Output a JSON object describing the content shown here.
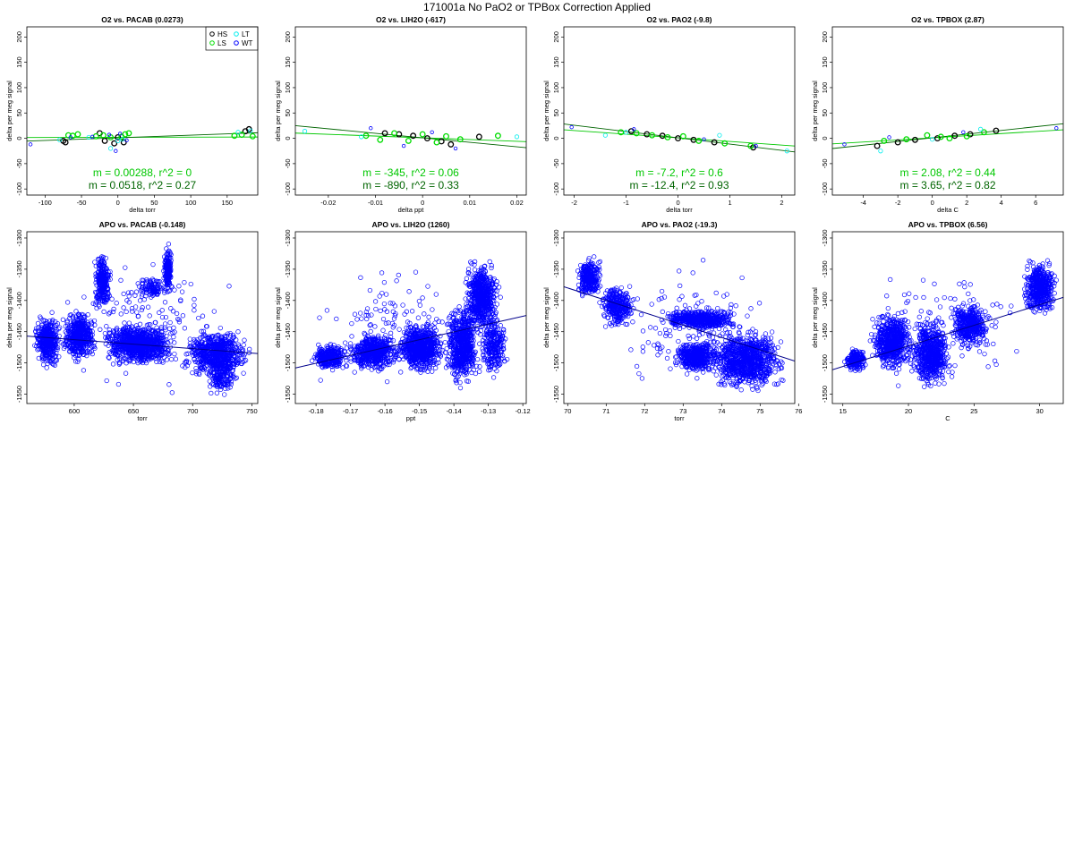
{
  "page_title": "171001a   No PaO2 or TPBox Correction Applied",
  "colors": {
    "HS": "#000000",
    "LS": "#00dd00",
    "LT": "#00eeee",
    "WT": "#0000ff",
    "fit_green": "#00c800",
    "fit_dark": "#006400"
  },
  "legend": {
    "entries": [
      "HS",
      "LS",
      "LT",
      "WT"
    ]
  },
  "chart_data": [
    {
      "type": "scatter",
      "title": "O2 vs. PACAB (0.0273)",
      "xlabel": "delta torr",
      "ylabel": "delta per meg signal",
      "xlim": [
        -125,
        192
      ],
      "ylim": [
        -112,
        220
      ],
      "xticks": [
        -100,
        -50,
        0,
        50,
        100,
        150
      ],
      "yticks": [
        -100,
        -50,
        0,
        50,
        100,
        150,
        200
      ],
      "legend_position": "top-right",
      "fit_lines": [
        {
          "color": "green",
          "slope": 0.00288,
          "intercept": 2
        },
        {
          "color": "darkgreen",
          "slope": 0.0518,
          "intercept": 1
        }
      ],
      "annotations": [
        {
          "text": "m = 0.00288, r^2 = 0",
          "color": "green"
        },
        {
          "text": "m = 0.0518, r^2 = 0.27",
          "color": "darkgreen"
        }
      ],
      "series": [
        {
          "name": "HS",
          "x": [
            -75,
            -72,
            -25,
            -18,
            -5,
            0,
            8,
            180,
            175
          ],
          "y": [
            -5,
            -8,
            10,
            -5,
            -10,
            2,
            -8,
            18,
            14
          ]
        },
        {
          "name": "LS",
          "x": [
            -68,
            -62,
            -55,
            -30,
            -20,
            -10,
            5,
            10,
            15,
            160,
            170,
            185
          ],
          "y": [
            6,
            5,
            8,
            4,
            6,
            2,
            3,
            8,
            10,
            5,
            7,
            4
          ]
        },
        {
          "name": "LT",
          "x": [
            -80,
            -40,
            -10,
            0,
            6,
            165,
            182
          ],
          "y": [
            -3,
            2,
            -20,
            -5,
            -2,
            12,
            15
          ]
        },
        {
          "name": "WT",
          "x": [
            -120,
            -65,
            -35,
            -12,
            -3,
            3,
            12
          ],
          "y": [
            -12,
            2,
            3,
            7,
            -25,
            9,
            -4
          ]
        }
      ]
    },
    {
      "type": "scatter",
      "title": "O2 vs. LIH2O (-617)",
      "xlabel": "delta ppt",
      "ylabel": "delta per meg signal",
      "xlim": [
        -0.027,
        0.022
      ],
      "ylim": [
        -112,
        220
      ],
      "xticks": [
        -0.02,
        -0.01,
        0.0,
        0.01,
        0.02
      ],
      "yticks": [
        -100,
        -50,
        0,
        50,
        100,
        150,
        200
      ],
      "fit_lines": [
        {
          "color": "green",
          "slope": -345,
          "intercept": 1
        },
        {
          "color": "darkgreen",
          "slope": -890,
          "intercept": 1
        }
      ],
      "annotations": [
        {
          "text": "m = -345, r^2 = 0.06",
          "color": "green"
        },
        {
          "text": "m = -890, r^2 = 0.33",
          "color": "darkgreen"
        }
      ],
      "series": [
        {
          "name": "HS",
          "x": [
            -0.008,
            -0.005,
            -0.002,
            0.001,
            0.004,
            0.006,
            0.012
          ],
          "y": [
            10,
            8,
            5,
            0,
            -6,
            -12,
            3
          ]
        },
        {
          "name": "LS",
          "x": [
            -0.012,
            -0.009,
            -0.006,
            -0.003,
            0.0,
            0.003,
            0.005,
            0.008,
            0.016
          ],
          "y": [
            5,
            -3,
            10,
            -5,
            8,
            -8,
            4,
            -2,
            5
          ]
        },
        {
          "name": "LT",
          "x": [
            -0.025,
            -0.013,
            0.02
          ],
          "y": [
            14,
            3,
            3
          ]
        },
        {
          "name": "WT",
          "x": [
            -0.011,
            -0.004,
            0.002,
            0.007
          ],
          "y": [
            20,
            -15,
            12,
            -20
          ]
        }
      ]
    },
    {
      "type": "scatter",
      "title": "O2 vs. PAO2 (-9.8)",
      "xlabel": "delta torr",
      "ylabel": "delta per meg signal",
      "xlim": [
        -2.2,
        2.25
      ],
      "ylim": [
        -112,
        220
      ],
      "xticks": [
        -2,
        -1,
        0,
        1,
        2
      ],
      "yticks": [
        -100,
        -50,
        0,
        50,
        100,
        150,
        200
      ],
      "fit_lines": [
        {
          "color": "green",
          "slope": -7.2,
          "intercept": 1
        },
        {
          "color": "darkgreen",
          "slope": -12.4,
          "intercept": 1
        }
      ],
      "annotations": [
        {
          "text": "m = -7.2, r^2 = 0.6",
          "color": "green"
        },
        {
          "text": "m = -12.4, r^2 = 0.93",
          "color": "darkgreen"
        }
      ],
      "series": [
        {
          "name": "HS",
          "x": [
            -0.9,
            -0.6,
            -0.3,
            0.0,
            0.3,
            0.7,
            1.45
          ],
          "y": [
            14,
            8,
            5,
            0,
            -3,
            -8,
            -18
          ]
        },
        {
          "name": "LS",
          "x": [
            -1.1,
            -0.8,
            -0.5,
            -0.2,
            0.1,
            0.4,
            0.9,
            1.4
          ],
          "y": [
            12,
            10,
            6,
            2,
            4,
            -5,
            -10,
            -15
          ]
        },
        {
          "name": "LT",
          "x": [
            -1.4,
            -1.0,
            0.8,
            2.1
          ],
          "y": [
            6,
            12,
            6,
            -25
          ]
        },
        {
          "name": "WT",
          "x": [
            -2.05,
            -0.85,
            0.5,
            1.5
          ],
          "y": [
            22,
            18,
            -2,
            -15
          ]
        }
      ]
    },
    {
      "type": "scatter",
      "title": "O2 vs. TPBOX (2.87)",
      "xlabel": "delta C",
      "ylabel": "delta per meg signal",
      "xlim": [
        -5.8,
        7.6
      ],
      "ylim": [
        -112,
        220
      ],
      "xticks": [
        -4,
        -2,
        0,
        2,
        4,
        6
      ],
      "yticks": [
        -100,
        -50,
        0,
        50,
        100,
        150,
        200
      ],
      "fit_lines": [
        {
          "color": "green",
          "slope": 2.08,
          "intercept": 1
        },
        {
          "color": "darkgreen",
          "slope": 3.65,
          "intercept": 1
        }
      ],
      "annotations": [
        {
          "text": "m = 2.08, r^2 = 0.44",
          "color": "green"
        },
        {
          "text": "m = 3.65, r^2 = 0.82",
          "color": "darkgreen"
        }
      ],
      "series": [
        {
          "name": "HS",
          "x": [
            -3.2,
            -2.0,
            -1.0,
            0.3,
            1.3,
            2.2,
            3.7
          ],
          "y": [
            -15,
            -8,
            -3,
            0,
            5,
            8,
            15
          ]
        },
        {
          "name": "LS",
          "x": [
            -2.8,
            -1.5,
            -0.3,
            0.5,
            1.0,
            2.0,
            3.0
          ],
          "y": [
            -5,
            -2,
            6,
            3,
            0,
            4,
            12
          ]
        },
        {
          "name": "LT",
          "x": [
            -3.0,
            0.0,
            2.8
          ],
          "y": [
            -25,
            -2,
            18
          ]
        },
        {
          "name": "WT",
          "x": [
            -5.1,
            -2.5,
            1.8,
            7.2
          ],
          "y": [
            -12,
            2,
            12,
            20
          ]
        }
      ]
    },
    {
      "type": "scatter",
      "title": "APO vs. PACAB (-0.148)",
      "xlabel": "torr",
      "ylabel": "delta per meg signal",
      "xlim": [
        560,
        755
      ],
      "ylim": [
        -1565,
        -1290
      ],
      "xticks": [
        600,
        650,
        700,
        750
      ],
      "yticks": [
        -1550,
        -1500,
        -1450,
        -1400,
        -1350,
        -1300
      ],
      "fit_line": {
        "x": [
          560,
          755
        ],
        "y": [
          -1457,
          -1485
        ]
      },
      "clusters": [
        {
          "x": [
            565,
            590
          ],
          "y": [
            -1420,
            -1510
          ],
          "count": 380
        },
        {
          "x": [
            588,
            620
          ],
          "y": [
            -1410,
            -1505
          ],
          "count": 450
        },
        {
          "x": [
            616,
            632
          ],
          "y": [
            -1320,
            -1420
          ],
          "count": 260
        },
        {
          "x": [
            620,
            690
          ],
          "y": [
            -1430,
            -1510
          ],
          "count": 850
        },
        {
          "x": [
            675,
            683
          ],
          "y": [
            -1305,
            -1395
          ],
          "count": 150
        },
        {
          "x": [
            650,
            680
          ],
          "y": [
            -1360,
            -1400
          ],
          "count": 100
        },
        {
          "x": [
            690,
            752
          ],
          "y": [
            -1440,
            -1530
          ],
          "count": 650
        },
        {
          "x": [
            710,
            740
          ],
          "y": [
            -1480,
            -1560
          ],
          "count": 150
        },
        {
          "x": [
            565,
            752
          ],
          "y": [
            -1320,
            -1560
          ],
          "count": 150
        }
      ]
    },
    {
      "type": "scatter",
      "title": "APO vs. LIH2O (1260)",
      "xlabel": "ppt",
      "ylabel": "delta per meg signal",
      "xlim": [
        -0.186,
        -0.119
      ],
      "ylim": [
        -1565,
        -1290
      ],
      "xticks": [
        -0.18,
        -0.17,
        -0.16,
        -0.15,
        -0.14,
        -0.13,
        -0.12
      ],
      "yticks": [
        -1550,
        -1500,
        -1450,
        -1400,
        -1350,
        -1300
      ],
      "fit_line": {
        "x": [
          -0.186,
          -0.119
        ],
        "y": [
          -1508,
          -1424
        ]
      },
      "clusters": [
        {
          "x": [
            -0.182,
            -0.17
          ],
          "y": [
            -1465,
            -1515
          ],
          "count": 280
        },
        {
          "x": [
            -0.172,
            -0.155
          ],
          "y": [
            -1450,
            -1515
          ],
          "count": 550
        },
        {
          "x": [
            -0.157,
            -0.142
          ],
          "y": [
            -1430,
            -1520
          ],
          "count": 700
        },
        {
          "x": [
            -0.143,
            -0.132
          ],
          "y": [
            -1400,
            -1545
          ],
          "count": 600
        },
        {
          "x": [
            -0.138,
            -0.126
          ],
          "y": [
            -1330,
            -1460
          ],
          "count": 600
        },
        {
          "x": [
            -0.133,
            -0.124
          ],
          "y": [
            -1410,
            -1530
          ],
          "count": 250
        },
        {
          "x": [
            -0.186,
            -0.121
          ],
          "y": [
            -1330,
            -1560
          ],
          "count": 150
        }
      ]
    },
    {
      "type": "scatter",
      "title": "APO vs. PAO2 (-19.3)",
      "xlabel": "torr",
      "ylabel": "delta per meg signal",
      "xlim": [
        69.9,
        75.9
      ],
      "ylim": [
        -1565,
        -1290
      ],
      "xticks": [
        70,
        71,
        72,
        73,
        74,
        75,
        76
      ],
      "yticks": [
        -1550,
        -1500,
        -1450,
        -1400,
        -1350,
        -1300
      ],
      "fit_line": {
        "x": [
          69.9,
          75.9
        ],
        "y": [
          -1378,
          -1497
        ]
      },
      "clusters": [
        {
          "x": [
            70.2,
            70.9
          ],
          "y": [
            -1325,
            -1400
          ],
          "count": 280
        },
        {
          "x": [
            70.8,
            71.8
          ],
          "y": [
            -1370,
            -1450
          ],
          "count": 300
        },
        {
          "x": [
            72.3,
            74.6
          ],
          "y": [
            -1410,
            -1450
          ],
          "count": 500
        },
        {
          "x": [
            72.7,
            74.0
          ],
          "y": [
            -1460,
            -1520
          ],
          "count": 450
        },
        {
          "x": [
            73.5,
            75.8
          ],
          "y": [
            -1440,
            -1550
          ],
          "count": 900
        },
        {
          "x": [
            70.2,
            75.8
          ],
          "y": [
            -1310,
            -1560
          ],
          "count": 120
        }
      ]
    },
    {
      "type": "scatter",
      "title": "APO vs. TPBOX (6.56)",
      "xlabel": "C",
      "ylabel": "delta per meg signal",
      "xlim": [
        14.2,
        31.8
      ],
      "ylim": [
        -1565,
        -1290
      ],
      "xticks": [
        15,
        20,
        25,
        30
      ],
      "yticks": [
        -1550,
        -1500,
        -1450,
        -1400,
        -1350,
        -1300
      ],
      "fit_line": {
        "x": [
          14.2,
          31.8
        ],
        "y": [
          -1511,
          -1395
        ]
      },
      "clusters": [
        {
          "x": [
            15.0,
            17.0
          ],
          "y": [
            -1475,
            -1515
          ],
          "count": 200
        },
        {
          "x": [
            17.0,
            20.5
          ],
          "y": [
            -1410,
            -1520
          ],
          "count": 600
        },
        {
          "x": [
            20.0,
            23.5
          ],
          "y": [
            -1420,
            -1550
          ],
          "count": 600
        },
        {
          "x": [
            23.0,
            26.5
          ],
          "y": [
            -1400,
            -1480
          ],
          "count": 400
        },
        {
          "x": [
            28.5,
            31.5
          ],
          "y": [
            -1330,
            -1430
          ],
          "count": 450
        },
        {
          "x": [
            15.0,
            31.5
          ],
          "y": [
            -1310,
            -1560
          ],
          "count": 100
        }
      ]
    }
  ]
}
